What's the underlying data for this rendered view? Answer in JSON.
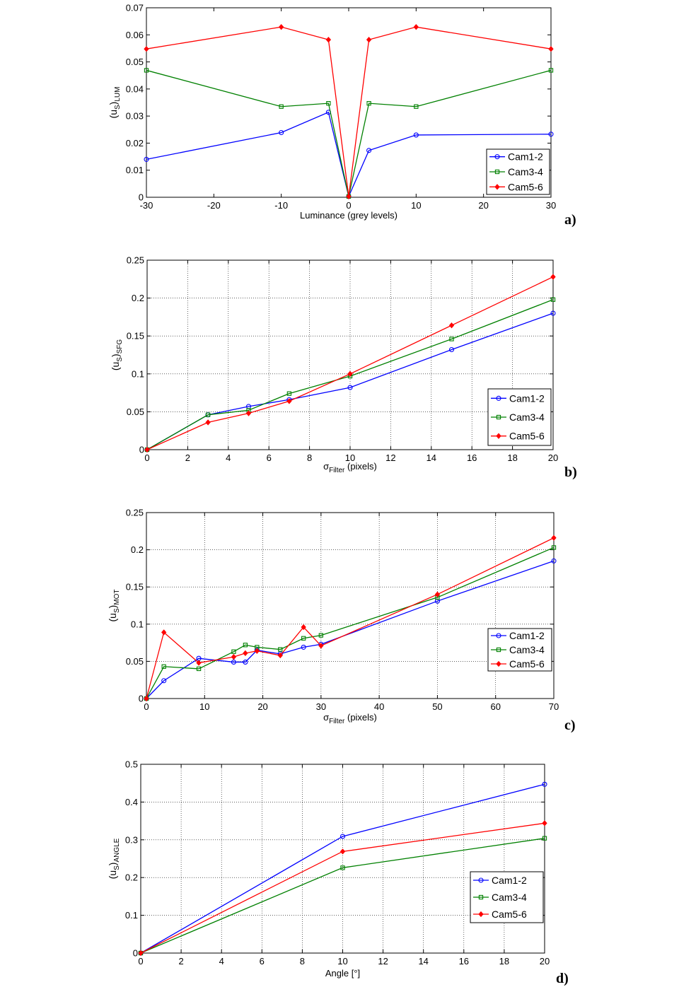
{
  "series_styles": [
    {
      "name": "Cam1-2",
      "color": "#0000ff",
      "marker": "circle"
    },
    {
      "name": "Cam3-4",
      "color": "#008000",
      "marker": "square"
    },
    {
      "name": "Cam5-6",
      "color": "#ff0000",
      "marker": "diamond"
    }
  ],
  "chart_data": [
    {
      "type": "line",
      "panel_label": "a)",
      "xlabel": "Luminance (grey levels)",
      "ylabel": "(u_S)_LUM",
      "ylabel_main": "(u",
      "ylabel_sub1": "S",
      "ylabel_close": ")",
      "ylabel_sub2": "LUM",
      "xlim": [
        -30,
        30
      ],
      "ylim": [
        0,
        0.07
      ],
      "xticks": [
        "-30",
        "-20",
        "-10",
        "0",
        "10",
        "20",
        "30"
      ],
      "yticks": [
        "0",
        "0.01",
        "0.02",
        "0.03",
        "0.04",
        "0.05",
        "0.06",
        "0.07"
      ],
      "grid": false,
      "legend": "bottom-right",
      "series": [
        {
          "name": "Cam1-2",
          "x": [
            -30,
            -10,
            -3,
            0,
            3,
            10,
            30
          ],
          "y": [
            0.014,
            0.0239,
            0.0314,
            0.0003,
            0.0173,
            0.023,
            0.0233
          ]
        },
        {
          "name": "Cam3-4",
          "x": [
            -30,
            -10,
            -3,
            0,
            3,
            10,
            30
          ],
          "y": [
            0.0469,
            0.0335,
            0.0347,
            0.0003,
            0.0347,
            0.0335,
            0.0469
          ]
        },
        {
          "name": "Cam5-6",
          "x": [
            -30,
            -10,
            -3,
            0,
            3,
            10,
            30
          ],
          "y": [
            0.0548,
            0.0629,
            0.0582,
            0.0003,
            0.0582,
            0.0629,
            0.0548
          ]
        }
      ]
    },
    {
      "type": "line",
      "panel_label": "b)",
      "xlabel": "σ_Filter (pixels)",
      "xlabel_main": "σ",
      "xlabel_sub": "Filter",
      "xlabel_rest": " (pixels)",
      "ylabel": "(u_S)_SFG",
      "ylabel_main": "(u",
      "ylabel_sub1": "S",
      "ylabel_close": ")",
      "ylabel_sub2": "SFG",
      "xlim": [
        0,
        20
      ],
      "ylim": [
        0,
        0.25
      ],
      "xticks": [
        "0",
        "2",
        "4",
        "6",
        "8",
        "10",
        "12",
        "14",
        "16",
        "18",
        "20"
      ],
      "yticks": [
        "0",
        "0.05",
        "0.1",
        "0.15",
        "0.2",
        "0.25"
      ],
      "grid": true,
      "legend": "bottom-right",
      "series": [
        {
          "name": "Cam1-2",
          "x": [
            0,
            3,
            5,
            7,
            10,
            15,
            20
          ],
          "y": [
            0,
            0.046,
            0.057,
            0.066,
            0.082,
            0.132,
            0.18
          ]
        },
        {
          "name": "Cam3-4",
          "x": [
            0,
            3,
            5,
            7,
            10,
            15,
            20
          ],
          "y": [
            0,
            0.046,
            0.052,
            0.074,
            0.097,
            0.146,
            0.198
          ]
        },
        {
          "name": "Cam5-6",
          "x": [
            0,
            3,
            5,
            7,
            10,
            15,
            20
          ],
          "y": [
            0,
            0.036,
            0.048,
            0.064,
            0.1,
            0.164,
            0.228
          ]
        }
      ]
    },
    {
      "type": "line",
      "panel_label": "c)",
      "xlabel": "σ_Filter (pixels)",
      "xlabel_main": "σ",
      "xlabel_sub": "Filter",
      "xlabel_rest": " (pixels)",
      "ylabel": "(u_S)_MOT",
      "ylabel_main": "(u",
      "ylabel_sub1": "S",
      "ylabel_close": ")",
      "ylabel_sub2": "MOT",
      "xlim": [
        0,
        70
      ],
      "ylim": [
        0,
        0.25
      ],
      "xticks": [
        "0",
        "10",
        "20",
        "30",
        "40",
        "50",
        "60",
        "70"
      ],
      "yticks": [
        "0",
        "0.05",
        "0.1",
        "0.15",
        "0.2",
        "0.25"
      ],
      "grid": true,
      "legend": "bottom-right",
      "series": [
        {
          "name": "Cam1-2",
          "x": [
            0,
            3,
            9,
            15,
            17,
            19,
            23,
            27,
            30,
            50,
            70
          ],
          "y": [
            0,
            0.024,
            0.054,
            0.049,
            0.049,
            0.065,
            0.06,
            0.069,
            0.073,
            0.131,
            0.185
          ]
        },
        {
          "name": "Cam3-4",
          "x": [
            0,
            3,
            9,
            15,
            17,
            19,
            23,
            27,
            30,
            50,
            70
          ],
          "y": [
            0,
            0.043,
            0.04,
            0.063,
            0.072,
            0.069,
            0.066,
            0.081,
            0.085,
            0.136,
            0.203
          ]
        },
        {
          "name": "Cam5-6",
          "x": [
            0,
            3,
            9,
            15,
            17,
            19,
            23,
            27,
            30,
            50,
            70
          ],
          "y": [
            0,
            0.089,
            0.048,
            0.056,
            0.061,
            0.064,
            0.058,
            0.096,
            0.071,
            0.14,
            0.216
          ]
        }
      ]
    },
    {
      "type": "line",
      "panel_label": "d)",
      "xlabel": "Angle [°]",
      "ylabel": "(u_S)_ANGLE",
      "ylabel_main": "(u",
      "ylabel_sub1": "S",
      "ylabel_close": ")",
      "ylabel_sub2": "ANGLE",
      "xlim": [
        0,
        20
      ],
      "ylim": [
        0,
        0.5
      ],
      "xticks": [
        "0",
        "2",
        "4",
        "6",
        "8",
        "10",
        "12",
        "14",
        "16",
        "18",
        "20"
      ],
      "yticks": [
        "0",
        "0.1",
        "0.2",
        "0.3",
        "0.4",
        "0.5"
      ],
      "grid": true,
      "legend": "bottom-right",
      "series": [
        {
          "name": "Cam1-2",
          "x": [
            0,
            10,
            20
          ],
          "y": [
            0,
            0.309,
            0.447
          ]
        },
        {
          "name": "Cam3-4",
          "x": [
            0,
            10,
            20
          ],
          "y": [
            0,
            0.226,
            0.304
          ]
        },
        {
          "name": "Cam5-6",
          "x": [
            0,
            10,
            20
          ],
          "y": [
            0,
            0.269,
            0.344
          ]
        }
      ]
    }
  ]
}
